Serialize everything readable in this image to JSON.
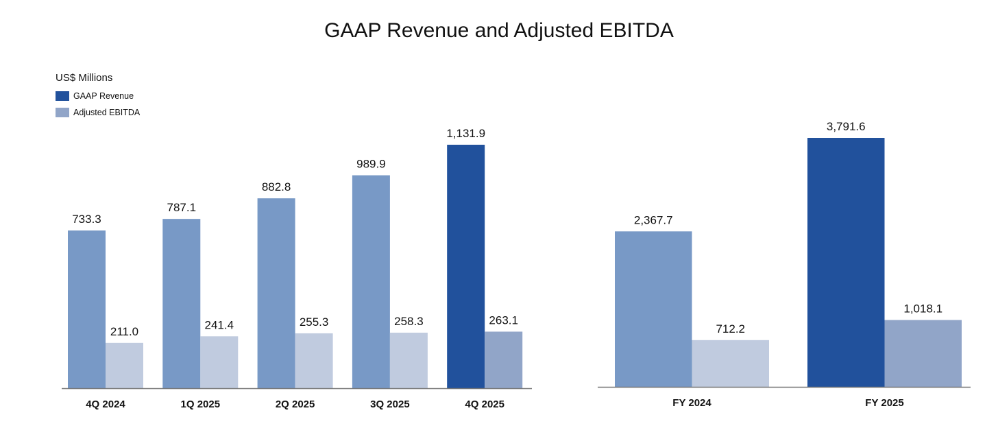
{
  "colors": {
    "revenue_current": "#21519c",
    "revenue_prior": "#7899c6",
    "ebitda_prior": "#c0cbdf",
    "ebitda_current": "#91a5c8",
    "axis": "#777777"
  },
  "chart_data": [
    {
      "type": "bar",
      "title": "GAAP Revenue and Adjusted EBITDA",
      "ylabel": "US$ Millions",
      "legend": [
        "GAAP Revenue",
        "Adjusted EBITDA"
      ],
      "legend_placement": "top-left",
      "grid": false,
      "categories": [
        "4Q 2024",
        "1Q 2025",
        "2Q 2025",
        "3Q 2025",
        "4Q 2025"
      ],
      "series": [
        {
          "name": "GAAP Revenue",
          "values": [
            733.3,
            787.1,
            882.8,
            989.9,
            1131.9
          ],
          "labels": [
            "733.3",
            "787.1",
            "882.8",
            "989.9",
            "1,131.9"
          ]
        },
        {
          "name": "Adjusted EBITDA",
          "values": [
            211.0,
            241.4,
            255.3,
            258.3,
            263.1
          ],
          "labels": [
            "211.0",
            "241.4",
            "255.3",
            "258.3",
            "263.1"
          ]
        }
      ],
      "ylim": [
        0,
        1131.9
      ]
    },
    {
      "type": "bar",
      "categories": [
        "FY 2024",
        "FY 2025"
      ],
      "series": [
        {
          "name": "GAAP Revenue",
          "values": [
            2367.7,
            3791.6
          ],
          "labels": [
            "2,367.7",
            "3,791.6"
          ]
        },
        {
          "name": "Adjusted EBITDA",
          "values": [
            712.2,
            1018.1
          ],
          "labels": [
            "712.2",
            "1,018.1"
          ]
        }
      ],
      "ylim": [
        0,
        3791.6
      ]
    }
  ]
}
